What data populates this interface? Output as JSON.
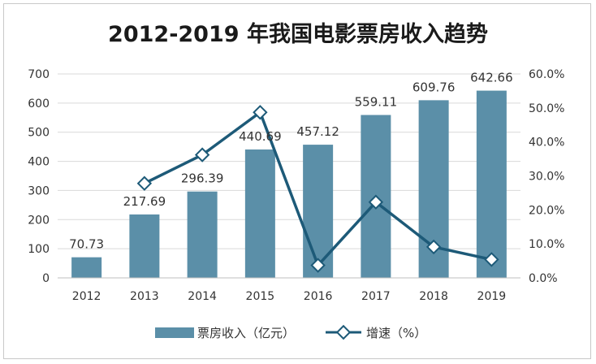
{
  "chart_data": {
    "type": "bar",
    "title": "2012-2019 年我国电影票房收入趋势",
    "categories": [
      "2012",
      "2013",
      "2014",
      "2015",
      "2016",
      "2017",
      "2018",
      "2019"
    ],
    "series": [
      {
        "name": "票房收入（亿元）",
        "type": "bar",
        "axis": "left",
        "values": [
          70.73,
          217.69,
          296.39,
          440.69,
          457.12,
          559.11,
          609.76,
          642.66
        ],
        "data_labels": [
          "70.73",
          "217.69",
          "296.39",
          "440.69",
          "457.12",
          "559.11",
          "609.76",
          "642.66"
        ]
      },
      {
        "name": "增速（%）",
        "type": "line",
        "axis": "right",
        "values": [
          null,
          27.8,
          36.2,
          48.7,
          3.7,
          22.3,
          9.1,
          5.4
        ]
      }
    ],
    "ylim_left": [
      0,
      700
    ],
    "yticks_left": [
      "0",
      "100",
      "200",
      "300",
      "400",
      "500",
      "600",
      "700"
    ],
    "ylim_right": [
      0,
      60
    ],
    "yticks_right": [
      "0.0%",
      "10.0%",
      "20.0%",
      "30.0%",
      "40.0%",
      "50.0%",
      "60.0%"
    ],
    "legend_position": "bottom",
    "grid": true,
    "colors": {
      "bar": "#5b8fa8",
      "line": "#1d5a78",
      "grid": "#d9d9d9",
      "axis": "#bfbfbf"
    }
  }
}
